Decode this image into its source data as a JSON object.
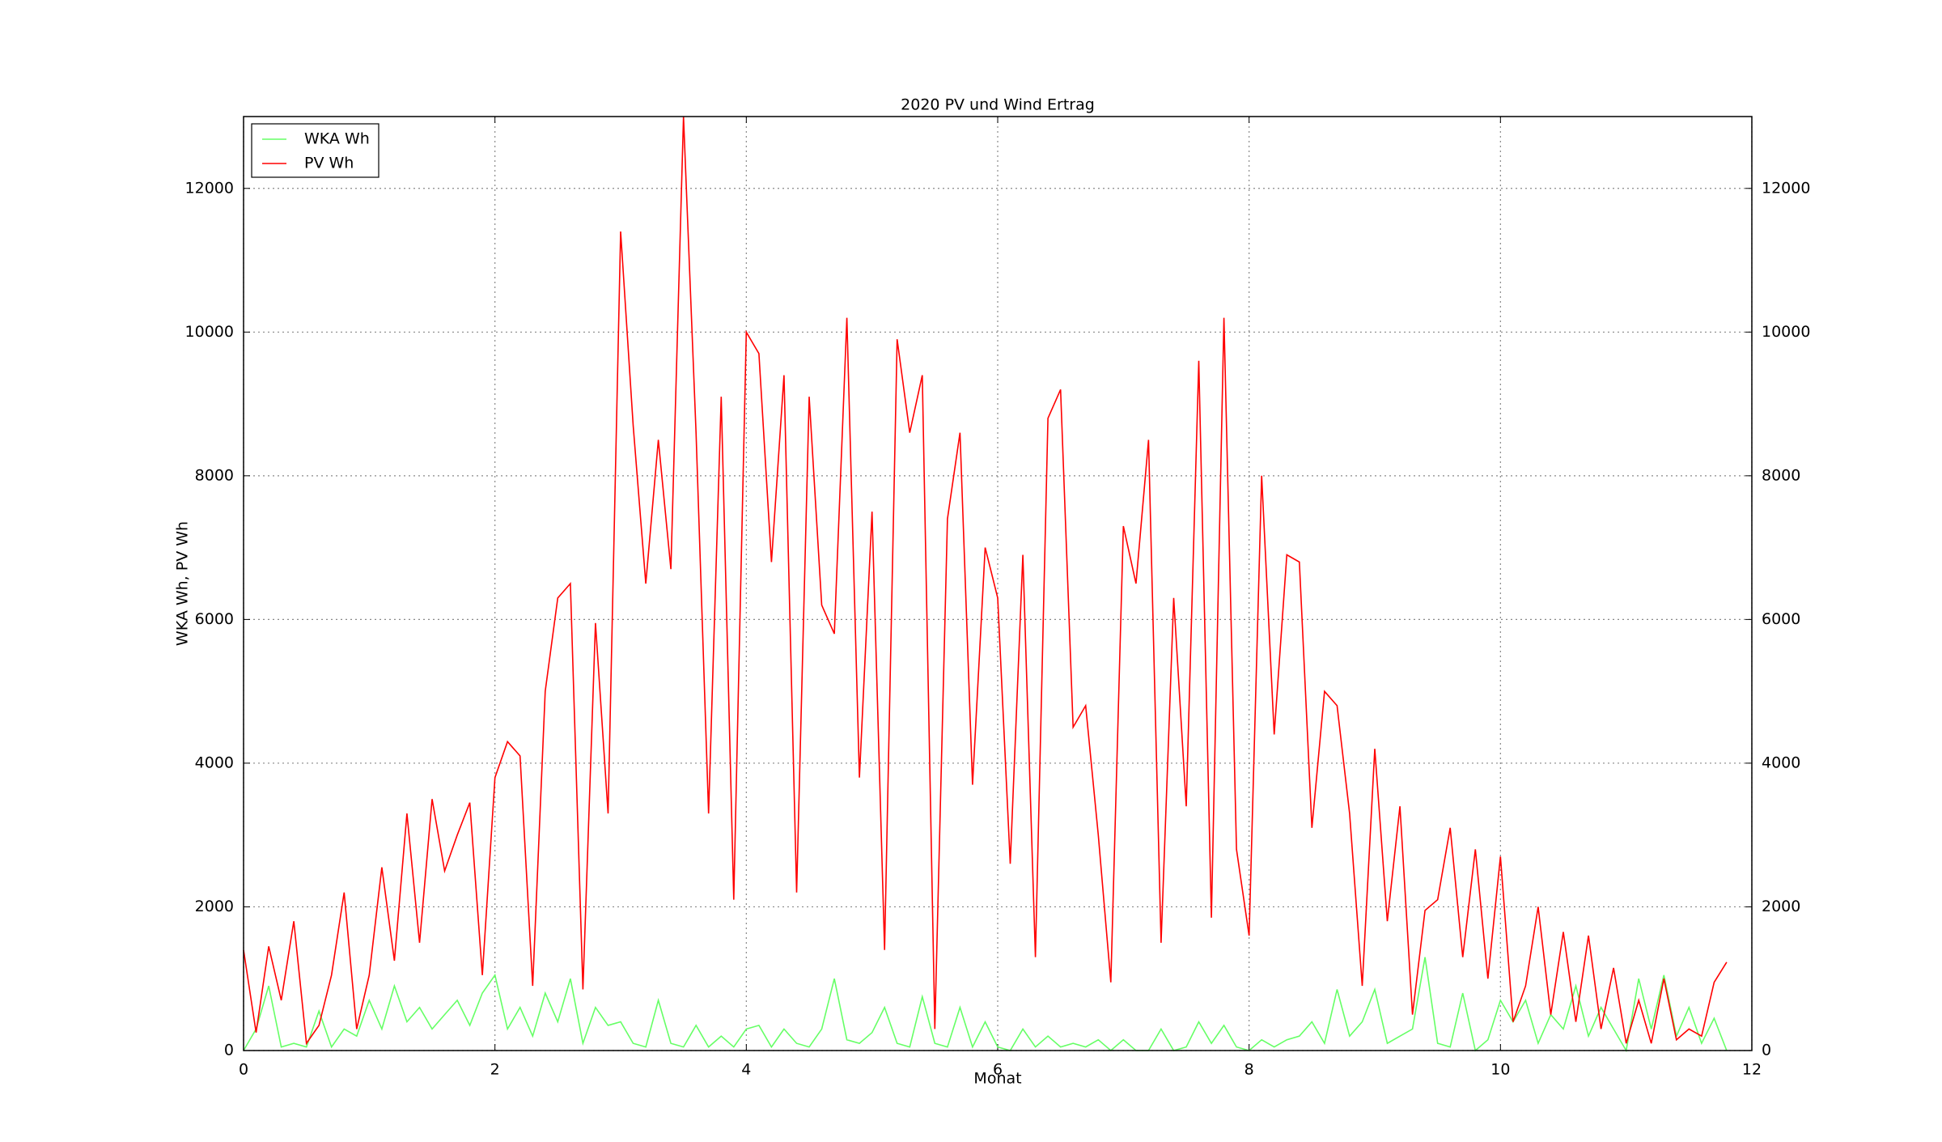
{
  "chart_data": {
    "type": "line",
    "title": "2020 PV und Wind Ertrag",
    "x_label": "Monat",
    "y_label": "WKA Wh, PV Wh",
    "x": [
      0.0,
      0.1,
      0.2,
      0.3,
      0.4,
      0.5,
      0.6,
      0.7,
      0.8,
      0.9,
      1.0,
      1.1,
      1.2,
      1.3,
      1.4,
      1.5,
      1.6,
      1.7,
      1.8,
      1.9,
      2.0,
      2.1,
      2.2,
      2.3,
      2.4,
      2.5,
      2.6,
      2.7,
      2.8,
      2.9,
      3.0,
      3.1,
      3.2,
      3.3,
      3.4,
      3.5,
      3.6,
      3.7,
      3.8,
      3.9,
      4.0,
      4.1,
      4.2,
      4.3,
      4.4,
      4.5,
      4.6,
      4.7,
      4.8,
      4.9,
      5.0,
      5.1,
      5.2,
      5.3,
      5.4,
      5.5,
      5.6,
      5.7,
      5.8,
      5.9,
      6.0,
      6.1,
      6.2,
      6.3,
      6.4,
      6.5,
      6.6,
      6.7,
      6.8,
      6.9,
      7.0,
      7.1,
      7.2,
      7.3,
      7.4,
      7.5,
      7.6,
      7.7,
      7.8,
      7.9,
      8.0,
      8.1,
      8.2,
      8.3,
      8.4,
      8.5,
      8.6,
      8.7,
      8.8,
      8.9,
      9.0,
      9.1,
      9.2,
      9.3,
      9.4,
      9.5,
      9.6,
      9.7,
      9.8,
      9.9,
      10.0,
      10.1,
      10.2,
      10.3,
      10.4,
      10.5,
      10.6,
      10.7,
      10.8,
      10.9,
      11.0,
      11.1,
      11.2,
      11.3,
      11.4,
      11.5,
      11.6,
      11.7,
      11.8
    ],
    "series": [
      {
        "name": "WKA Wh",
        "color": "#66ff66",
        "values": [
          0,
          300,
          900,
          50,
          100,
          50,
          550,
          50,
          300,
          200,
          700,
          300,
          900,
          400,
          600,
          300,
          500,
          700,
          350,
          800,
          1050,
          300,
          600,
          200,
          800,
          400,
          1000,
          100,
          600,
          350,
          400,
          100,
          50,
          700,
          100,
          50,
          350,
          50,
          200,
          50,
          300,
          350,
          50,
          300,
          100,
          50,
          300,
          1000,
          150,
          100,
          250,
          600,
          100,
          50,
          750,
          100,
          50,
          600,
          50,
          400,
          50,
          0,
          300,
          50,
          200,
          50,
          100,
          50,
          150,
          0,
          150,
          0,
          0,
          300,
          0,
          50,
          400,
          100,
          350,
          50,
          0,
          150,
          50,
          150,
          200,
          400,
          100,
          850,
          200,
          400,
          850,
          100,
          200,
          300,
          1300,
          100,
          50,
          800,
          0,
          150,
          700,
          400,
          700,
          100,
          500,
          300,
          900,
          200,
          600,
          300,
          0,
          1000,
          300,
          1050,
          200,
          600,
          100,
          450,
          0
        ]
      },
      {
        "name": "PV Wh",
        "color": "#ff0000",
        "values": [
          1400,
          250,
          1450,
          700,
          1800,
          100,
          350,
          1050,
          2200,
          300,
          1050,
          2550,
          1250,
          3300,
          1500,
          3500,
          2500,
          3000,
          3450,
          1050,
          3800,
          4300,
          4100,
          900,
          5000,
          6300,
          6500,
          850,
          5950,
          3300,
          11400,
          8700,
          6500,
          8500,
          6700,
          13000,
          8600,
          3300,
          9100,
          2100,
          10000,
          9700,
          6800,
          9400,
          2200,
          9100,
          6200,
          5800,
          10200,
          3800,
          7500,
          1400,
          9900,
          8600,
          9400,
          300,
          7400,
          8600,
          3700,
          7000,
          6300,
          2600,
          6900,
          1300,
          8800,
          9200,
          4500,
          4800,
          3000,
          950,
          7300,
          6500,
          8500,
          1500,
          6300,
          3400,
          9600,
          1850,
          10200,
          2800,
          1600,
          8000,
          4400,
          6900,
          6800,
          3100,
          5000,
          4800,
          3300,
          900,
          4200,
          1800,
          3400,
          500,
          1950,
          2100,
          3100,
          1300,
          2800,
          1000,
          2700,
          400,
          900,
          2000,
          500,
          1650,
          400,
          1600,
          300,
          1150,
          100,
          700,
          100,
          1000,
          150,
          300,
          200,
          950,
          1230
        ]
      }
    ],
    "xlim": [
      0,
      12
    ],
    "xticks": [
      0,
      2,
      4,
      6,
      8,
      10,
      12
    ],
    "ylim": [
      0,
      13000
    ],
    "yticks": [
      0,
      2000,
      4000,
      6000,
      8000,
      10000,
      12000
    ],
    "grid": true,
    "legend": "upper left"
  }
}
